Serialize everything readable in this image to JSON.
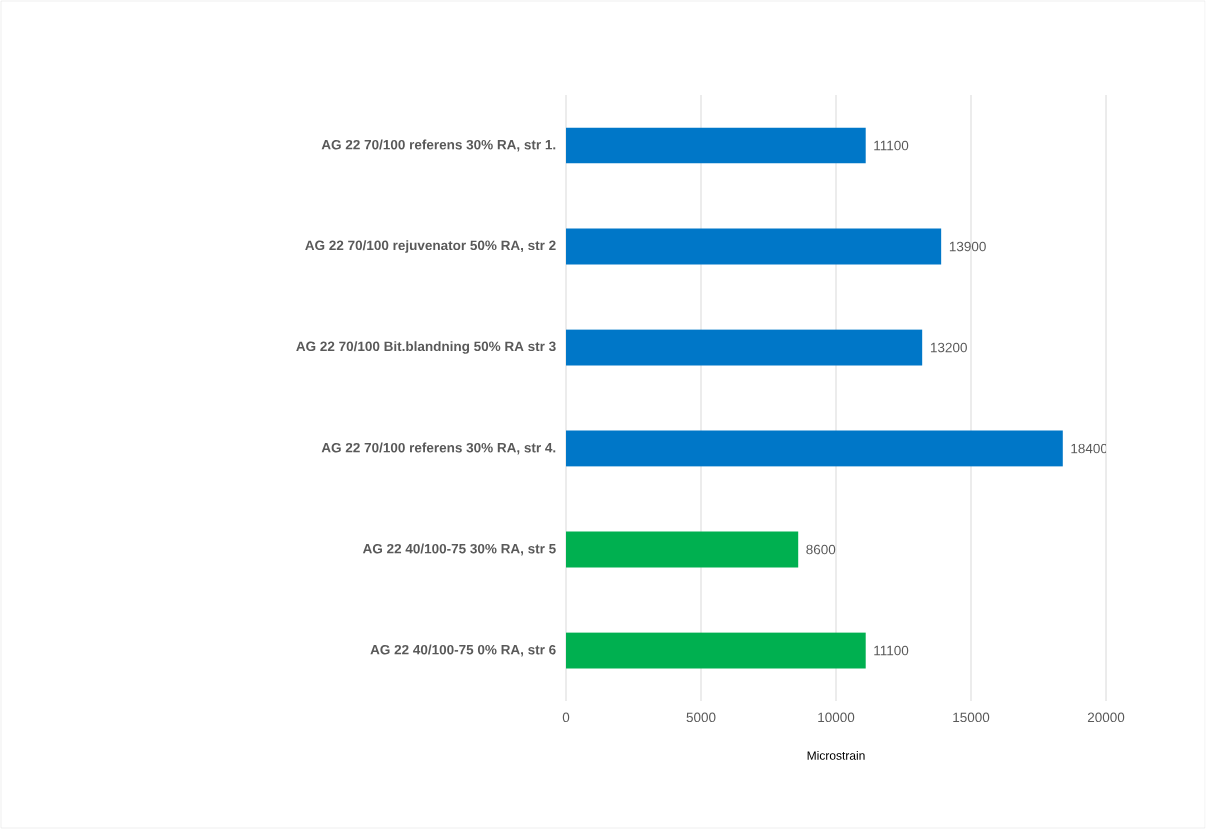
{
  "chart_data": {
    "type": "bar",
    "orientation": "horizontal",
    "xlabel": "Microstrain",
    "categories": [
      "AG 22 70/100 referens 30% RA, str 1.",
      "AG 22 70/100 rejuvenator 50% RA, str 2",
      "AG 22 70/100 Bit.blandning 50% RA str 3",
      "AG 22 70/100 referens 30% RA, str 4.",
      "AG 22 40/100-75 30% RA, str 5",
      "AG 22 40/100-75 0% RA, str 6"
    ],
    "values": [
      11100,
      13900,
      13200,
      18400,
      8600,
      11100
    ],
    "colors": [
      "#0077c8",
      "#0077c8",
      "#0077c8",
      "#0077c8",
      "#00b050",
      "#00b050"
    ],
    "xlim": [
      0,
      20000
    ],
    "xticks": [
      0,
      5000,
      10000,
      15000,
      20000
    ],
    "grid": "x",
    "data_labels": true
  }
}
